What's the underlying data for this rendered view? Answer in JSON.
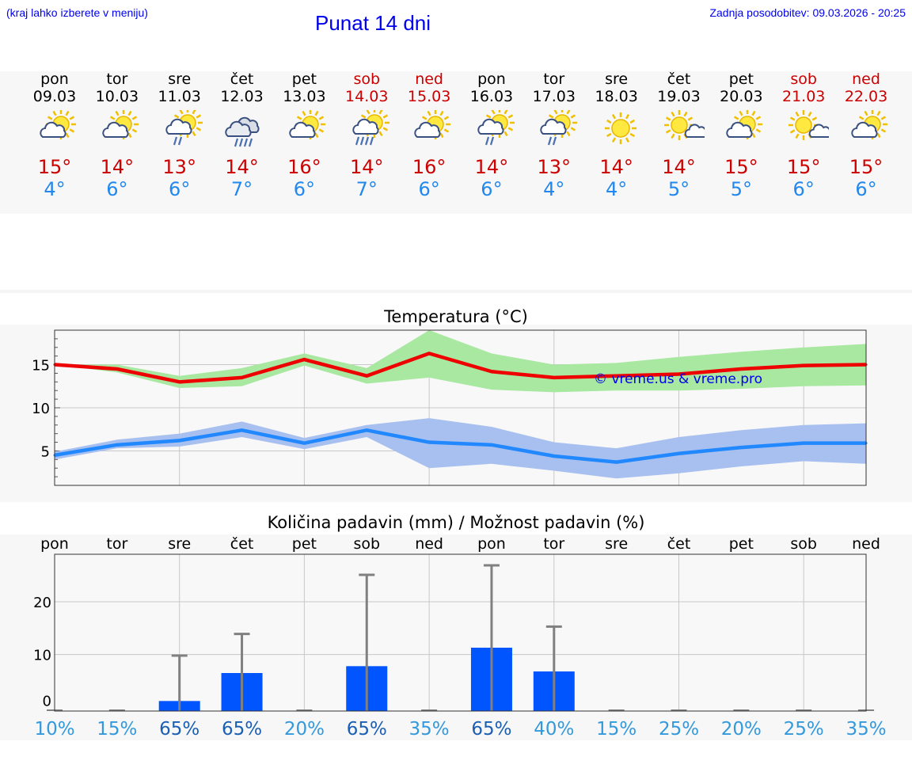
{
  "header": {
    "left_note": "(kraj lahko izberete v meniju)",
    "title": "Punat 14 dni",
    "last_update": "Zadnja posodobitev: 09.03.2026 - 20:25"
  },
  "forecast": [
    {
      "day": "pon",
      "date": "09.03",
      "tmax": "15°",
      "tmin": "4°",
      "icon": "sun-cloud-icon",
      "weekend": false
    },
    {
      "day": "tor",
      "date": "10.03",
      "tmax": "14°",
      "tmin": "6°",
      "icon": "sun-cloud-icon",
      "weekend": false
    },
    {
      "day": "sre",
      "date": "11.03",
      "tmax": "13°",
      "tmin": "6°",
      "icon": "sun-cloud-rain-icon",
      "weekend": false
    },
    {
      "day": "čet",
      "date": "12.03",
      "tmax": "14°",
      "tmin": "7°",
      "icon": "cloud-rain-icon",
      "weekend": false
    },
    {
      "day": "pet",
      "date": "13.03",
      "tmax": "16°",
      "tmin": "6°",
      "icon": "sun-cloud-icon",
      "weekend": false
    },
    {
      "day": "sob",
      "date": "14.03",
      "tmax": "14°",
      "tmin": "7°",
      "icon": "sun-cloud-heavy-rain-icon",
      "weekend": true
    },
    {
      "day": "ned",
      "date": "15.03",
      "tmax": "16°",
      "tmin": "6°",
      "icon": "sun-cloud-icon",
      "weekend": true
    },
    {
      "day": "pon",
      "date": "16.03",
      "tmax": "14°",
      "tmin": "6°",
      "icon": "sun-cloud-rain-icon",
      "weekend": false
    },
    {
      "day": "tor",
      "date": "17.03",
      "tmax": "13°",
      "tmin": "4°",
      "icon": "sun-cloud-rain-icon",
      "weekend": false
    },
    {
      "day": "sre",
      "date": "18.03",
      "tmax": "14°",
      "tmin": "4°",
      "icon": "sun-icon",
      "weekend": false
    },
    {
      "day": "čet",
      "date": "19.03",
      "tmax": "14°",
      "tmin": "5°",
      "icon": "sun-small-cloud-icon",
      "weekend": false
    },
    {
      "day": "pet",
      "date": "20.03",
      "tmax": "15°",
      "tmin": "5°",
      "icon": "sun-cloud-icon",
      "weekend": false
    },
    {
      "day": "sob",
      "date": "21.03",
      "tmax": "15°",
      "tmin": "6°",
      "icon": "sun-small-cloud-icon",
      "weekend": true
    },
    {
      "day": "ned",
      "date": "22.03",
      "tmax": "15°",
      "tmin": "6°",
      "icon": "sun-cloud-icon",
      "weekend": true
    }
  ],
  "colors": {
    "max": "#ee0000",
    "min": "#2288ff",
    "max_band": "#a8e8a0",
    "min_band": "#a8c0f0",
    "bar": "#0055ff",
    "whisker": "#808080",
    "watermark": "#0000ee",
    "weekend": "#cc0000"
  },
  "chart_data": [
    {
      "type": "line",
      "title": "Temperatura (°C)",
      "ylim": [
        1,
        19
      ],
      "yticks": [
        5,
        10,
        15
      ],
      "watermark": "© vreme.us & vreme.pro",
      "series": [
        {
          "name": "max",
          "values": [
            15.0,
            14.5,
            13.0,
            13.5,
            15.6,
            13.7,
            16.3,
            14.2,
            13.5,
            13.7,
            13.9,
            14.5,
            14.9,
            15.0
          ],
          "low": [
            15.0,
            14.1,
            12.3,
            12.5,
            14.9,
            12.8,
            13.5,
            12.1,
            11.8,
            12.0,
            12.0,
            12.2,
            12.5,
            12.6
          ],
          "high": [
            15.0,
            15.0,
            13.7,
            14.6,
            16.3,
            14.6,
            19.0,
            16.3,
            15.0,
            15.2,
            15.9,
            16.5,
            17.0,
            17.4
          ]
        },
        {
          "name": "min",
          "values": [
            4.5,
            5.7,
            6.2,
            7.4,
            5.9,
            7.4,
            6.0,
            5.7,
            4.4,
            3.7,
            4.7,
            5.4,
            5.9,
            5.9
          ],
          "low": [
            4.0,
            5.3,
            5.5,
            6.6,
            5.2,
            6.6,
            3.0,
            3.5,
            2.7,
            1.8,
            2.4,
            3.2,
            3.8,
            3.5
          ],
          "high": [
            4.9,
            6.3,
            7.0,
            8.4,
            6.5,
            8.0,
            8.8,
            7.8,
            6.0,
            5.3,
            6.6,
            7.4,
            8.0,
            8.2
          ]
        }
      ]
    },
    {
      "type": "bar",
      "title": "Količina padavin (mm) / Možnost padavin (%)",
      "ylim": [
        -0.7,
        29
      ],
      "yticks": [
        0,
        10,
        20
      ],
      "categories": [
        "pon",
        "tor",
        "sre",
        "čet",
        "pet",
        "sob",
        "ned",
        "pon",
        "tor",
        "sre",
        "čet",
        "pet",
        "sob",
        "ned"
      ],
      "values": [
        0,
        0,
        1.2,
        6.5,
        0,
        7.8,
        0,
        11.3,
        6.8,
        0,
        0,
        0,
        0,
        0
      ],
      "upper": [
        0,
        0,
        9.8,
        13.9,
        0,
        25.1,
        0,
        26.9,
        15.3,
        0,
        0,
        0,
        0,
        0
      ],
      "probability": [
        "10%",
        "15%",
        "65%",
        "65%",
        "20%",
        "65%",
        "35%",
        "65%",
        "40%",
        "15%",
        "25%",
        "20%",
        "25%",
        "35%"
      ],
      "prob_high": [
        false,
        false,
        true,
        true,
        false,
        true,
        false,
        true,
        false,
        false,
        false,
        false,
        false,
        false
      ]
    }
  ]
}
